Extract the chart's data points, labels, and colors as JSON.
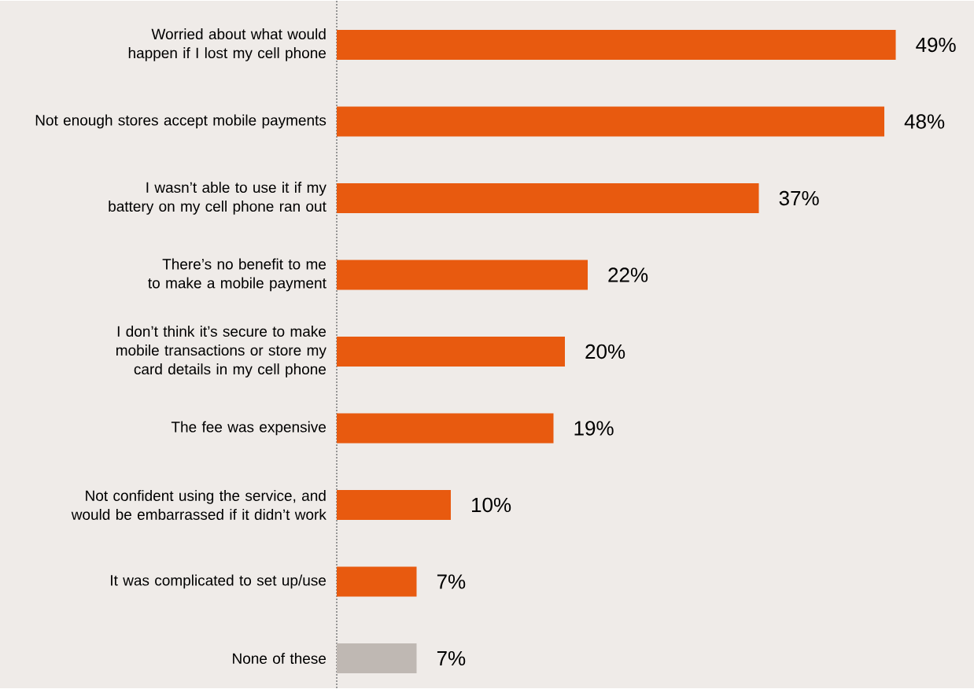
{
  "chart_data": {
    "type": "bar",
    "orientation": "horizontal",
    "categories": [
      "Worried about what would happen if I lost my cell phone",
      "Not enough stores accept mobile payments",
      "I wasn’t able to use it if my battery on my cell phone ran out",
      "There’s no benefit to me to make a mobile payment",
      "I don’t think it’s secure to make mobile transactions or store my card details in my cell phone",
      "The fee was expensive",
      "Not confident using the service, and would be embarrassed if it didn’t work",
      "It was complicated to set up/use",
      "None of these"
    ],
    "values": [
      49,
      48,
      37,
      22,
      20,
      19,
      10,
      7,
      7
    ],
    "colors": [
      "#e85a0f",
      "#e85a0f",
      "#e85a0f",
      "#e85a0f",
      "#e85a0f",
      "#e85a0f",
      "#e85a0f",
      "#e85a0f",
      "#bfb8b3"
    ],
    "value_labels": [
      "49%",
      "48%",
      "37%",
      "22%",
      "20%",
      "19%",
      "10%",
      "7%",
      "7%"
    ]
  }
}
